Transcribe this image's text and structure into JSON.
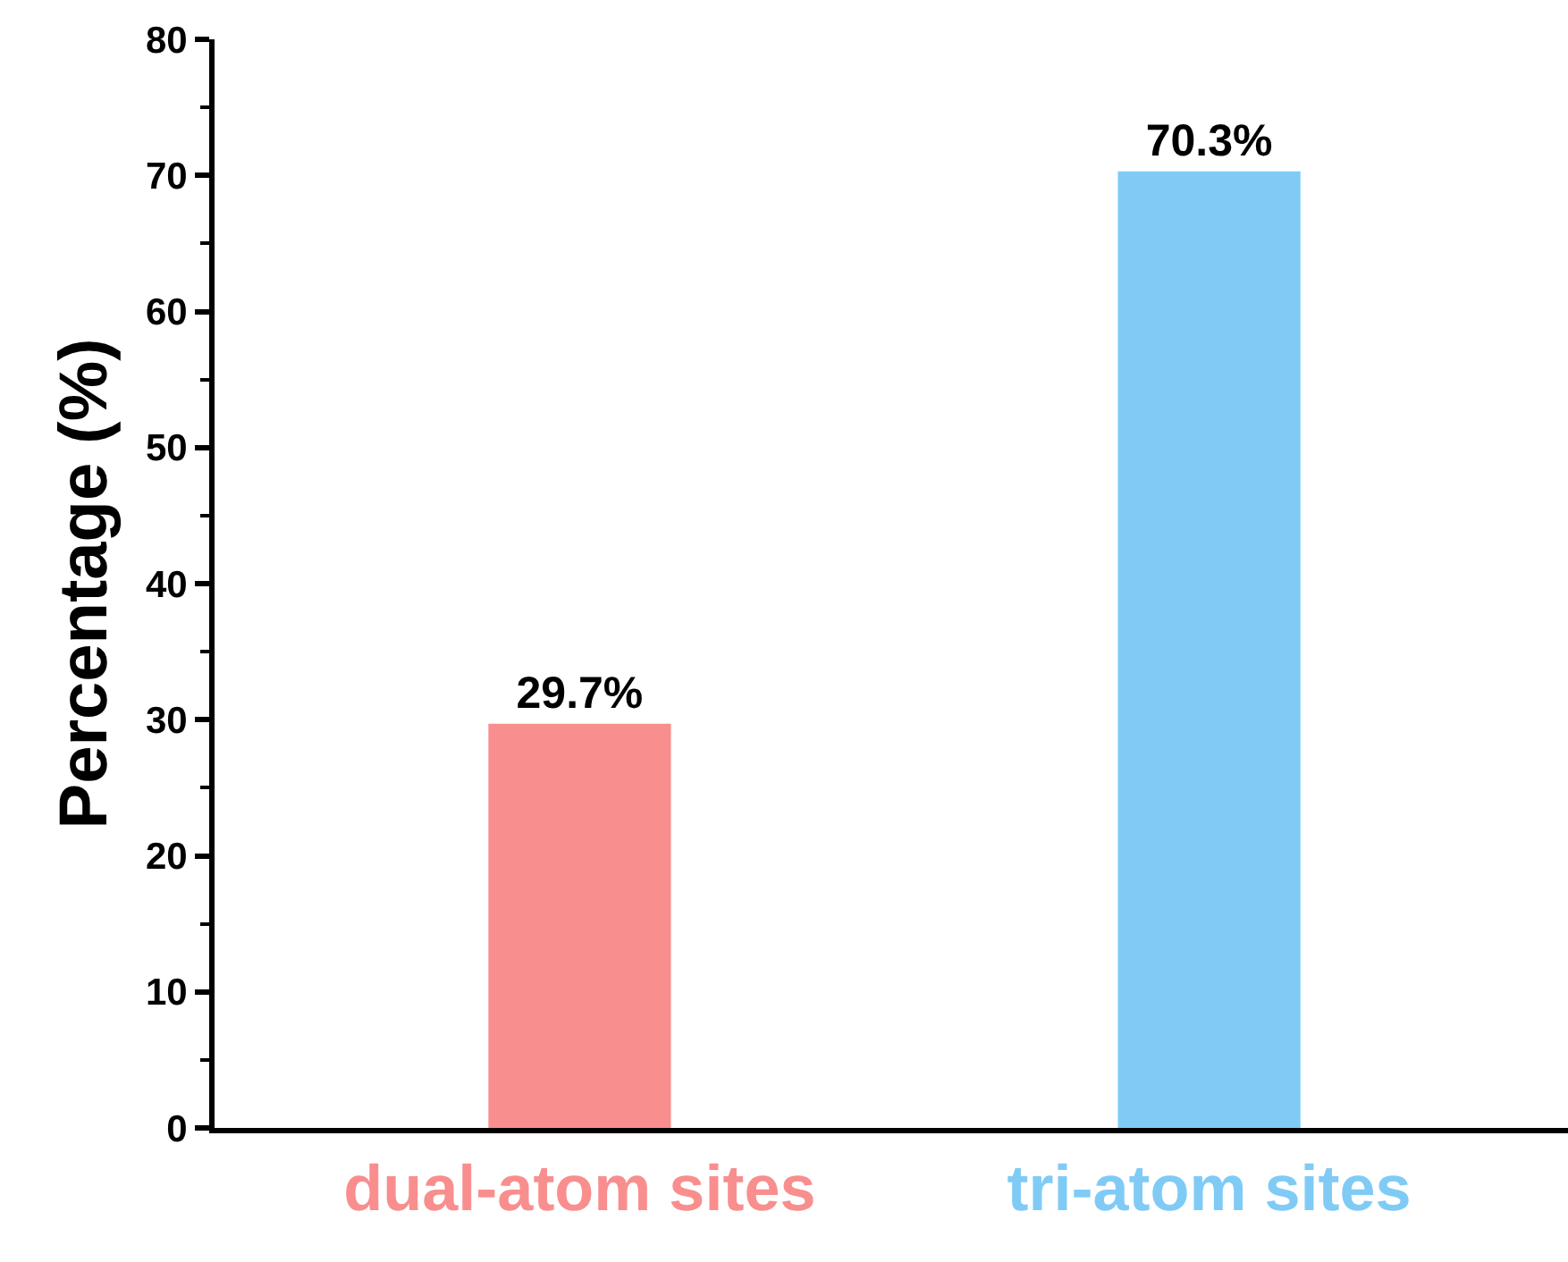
{
  "chart_data": {
    "type": "bar",
    "categories": [
      "dual-atom sites",
      "tri-atom sites"
    ],
    "values": [
      29.7,
      70.3
    ],
    "colors": [
      "#f98e8e",
      "#7fcbf6"
    ],
    "value_labels": [
      "29.7%",
      "70.3%"
    ],
    "ylabel": "Percentage (%)",
    "ylim": [
      0,
      80
    ],
    "yticks": [
      0,
      10,
      20,
      30,
      40,
      50,
      60,
      70,
      80
    ]
  }
}
